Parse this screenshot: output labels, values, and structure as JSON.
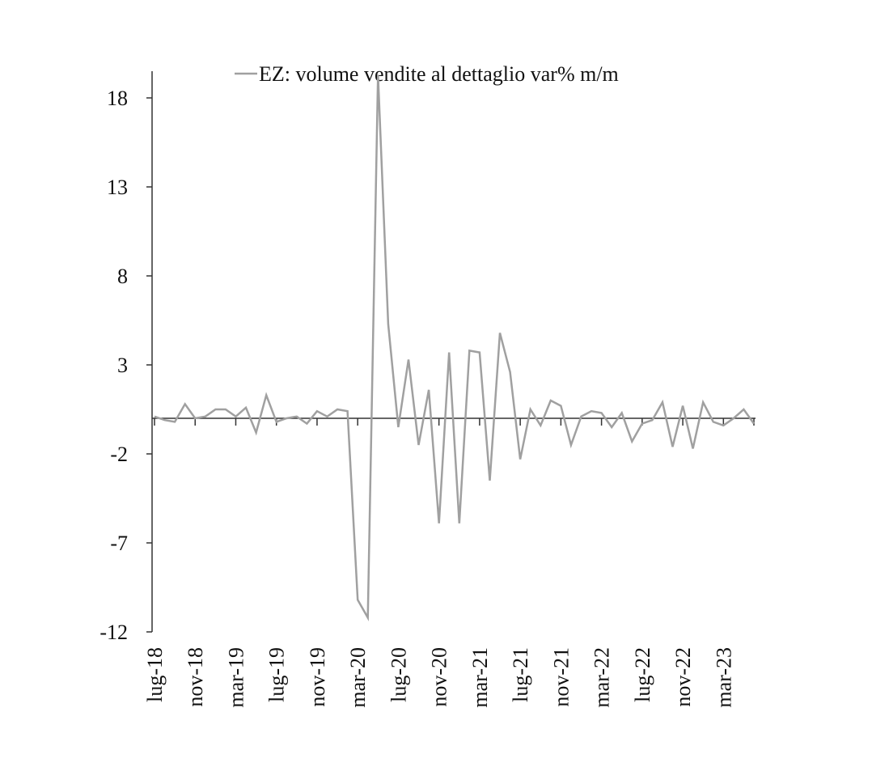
{
  "chart_data": {
    "type": "line",
    "title": "",
    "xlabel": "",
    "ylabel": "",
    "ylim": [
      -12,
      19.5
    ],
    "yticks": [
      18,
      13,
      8,
      3,
      -2,
      -7,
      -12
    ],
    "xtick_labels": [
      "lug-18",
      "nov-18",
      "mar-19",
      "lug-19",
      "nov-19",
      "mar-20",
      "lug-20",
      "nov-20",
      "mar-21",
      "lug-21",
      "nov-21",
      "mar-22",
      "lug-22",
      "nov-22",
      "mar-23"
    ],
    "grid": false,
    "legend_position": "top-center",
    "series": [
      {
        "name": "EZ: volume vendite al dettaglio var% m/m",
        "color": "#a0a0a0",
        "x": [
          "lug-18",
          "ago-18",
          "set-18",
          "ott-18",
          "nov-18",
          "dic-18",
          "gen-19",
          "feb-19",
          "mar-19",
          "apr-19",
          "mag-19",
          "giu-19",
          "lug-19",
          "ago-19",
          "set-19",
          "ott-19",
          "nov-19",
          "dic-19",
          "gen-20",
          "feb-20",
          "mar-20",
          "apr-20",
          "mag-20",
          "giu-20",
          "lug-20",
          "ago-20",
          "set-20",
          "ott-20",
          "nov-20",
          "dic-20",
          "gen-21",
          "feb-21",
          "mar-21",
          "apr-21",
          "mag-21",
          "giu-21",
          "lug-21",
          "ago-21",
          "set-21",
          "ott-21",
          "nov-21",
          "dic-21",
          "gen-22",
          "feb-22",
          "mar-22",
          "apr-22",
          "mag-22",
          "giu-22",
          "lug-22",
          "ago-22",
          "set-22",
          "ott-22",
          "nov-22",
          "dic-22",
          "gen-23",
          "feb-23",
          "mar-23",
          "apr-23",
          "mag-23",
          "giu-23"
        ],
        "values": [
          0.1,
          -0.1,
          -0.2,
          0.8,
          0.0,
          0.1,
          0.5,
          0.5,
          0.1,
          0.6,
          -0.8,
          1.3,
          -0.2,
          0.0,
          0.1,
          -0.3,
          0.4,
          0.1,
          0.5,
          0.4,
          -10.2,
          -11.2,
          19.3,
          5.3,
          -0.5,
          3.3,
          -1.5,
          1.6,
          -5.9,
          3.7,
          -5.9,
          3.8,
          3.7,
          -3.5,
          4.8,
          2.6,
          -2.3,
          0.5,
          -0.4,
          1.0,
          0.7,
          -1.5,
          0.1,
          0.4,
          0.3,
          -0.5,
          0.3,
          -1.3,
          -0.3,
          -0.1,
          0.9,
          -1.6,
          0.7,
          -1.7,
          0.9,
          -0.2,
          -0.4,
          0.0,
          0.5,
          -0.3
        ]
      }
    ]
  }
}
